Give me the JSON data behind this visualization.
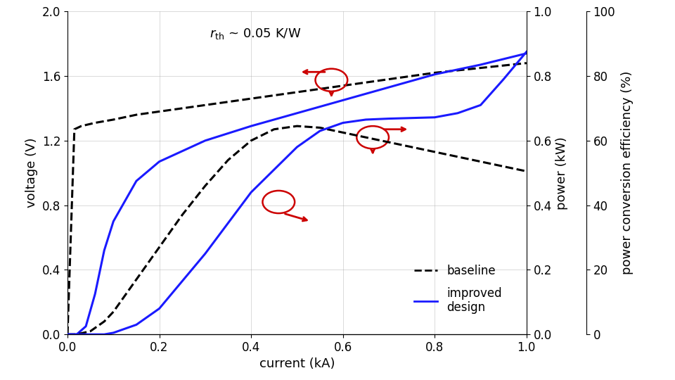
{
  "xlabel": "current (kA)",
  "ylabel_left": "voltage (V)",
  "ylabel_mid": "power (kW)",
  "ylabel_right": "power conversion efficiency (%)",
  "xlim": [
    0.0,
    1.0
  ],
  "ylim_left": [
    0.0,
    2.0
  ],
  "ylim_mid": [
    0.0,
    1.0
  ],
  "ylim_right": [
    0,
    100
  ],
  "xticks": [
    0.0,
    0.2,
    0.4,
    0.6,
    0.8,
    1.0
  ],
  "yticks_left": [
    0.0,
    0.4,
    0.8,
    1.2,
    1.6,
    2.0
  ],
  "yticks_mid": [
    0.0,
    0.2,
    0.4,
    0.6,
    0.8,
    1.0
  ],
  "yticks_right": [
    0,
    20,
    40,
    60,
    80,
    100
  ],
  "baseline_voltage_x": [
    0.0,
    0.015,
    0.03,
    0.06,
    0.1,
    0.15,
    0.2,
    0.3,
    0.4,
    0.5,
    0.6,
    0.7,
    0.8,
    0.9,
    1.0
  ],
  "baseline_voltage_y": [
    0.0,
    1.27,
    1.29,
    1.31,
    1.33,
    1.36,
    1.38,
    1.42,
    1.46,
    1.5,
    1.54,
    1.58,
    1.62,
    1.65,
    1.68
  ],
  "improved_voltage_x": [
    0.0,
    0.01,
    0.02,
    0.04,
    0.06,
    0.08,
    0.1,
    0.15,
    0.2,
    0.3,
    0.4,
    0.5,
    0.6,
    0.7,
    0.8,
    0.9,
    1.0
  ],
  "improved_voltage_y": [
    0.0,
    0.0,
    0.0,
    0.05,
    0.25,
    0.52,
    0.7,
    0.95,
    1.07,
    1.2,
    1.29,
    1.37,
    1.45,
    1.53,
    1.61,
    1.67,
    1.74
  ],
  "baseline_power_x": [
    0.0,
    0.02,
    0.05,
    0.08,
    0.1,
    0.15,
    0.2,
    0.25,
    0.3,
    0.35,
    0.4,
    0.45,
    0.5,
    0.55,
    0.6,
    0.7,
    0.8,
    0.9,
    1.0
  ],
  "baseline_power_y": [
    0.0,
    0.0,
    0.01,
    0.04,
    0.07,
    0.17,
    0.27,
    0.37,
    0.46,
    0.54,
    0.6,
    0.635,
    0.645,
    0.64,
    0.625,
    0.595,
    0.565,
    0.535,
    0.505
  ],
  "improved_power_x": [
    0.0,
    0.02,
    0.04,
    0.06,
    0.08,
    0.1,
    0.15,
    0.2,
    0.3,
    0.4,
    0.5,
    0.55,
    0.6,
    0.65,
    0.7,
    0.75,
    0.8,
    0.85,
    0.9,
    0.95,
    1.0
  ],
  "improved_power_y": [
    0.0,
    0.0,
    0.0,
    0.0,
    0.0,
    0.005,
    0.03,
    0.08,
    0.25,
    0.44,
    0.58,
    0.63,
    0.655,
    0.665,
    0.668,
    0.67,
    0.672,
    0.685,
    0.71,
    0.79,
    0.875
  ],
  "color_baseline": "#000000",
  "color_improved": "#1a1aff",
  "color_arrow": "#cc0000",
  "linestyle_baseline": "--",
  "linestyle_improved": "-",
  "linewidth": 2.2,
  "background_color": "#ffffff",
  "grid_color": "#aaaaaa"
}
